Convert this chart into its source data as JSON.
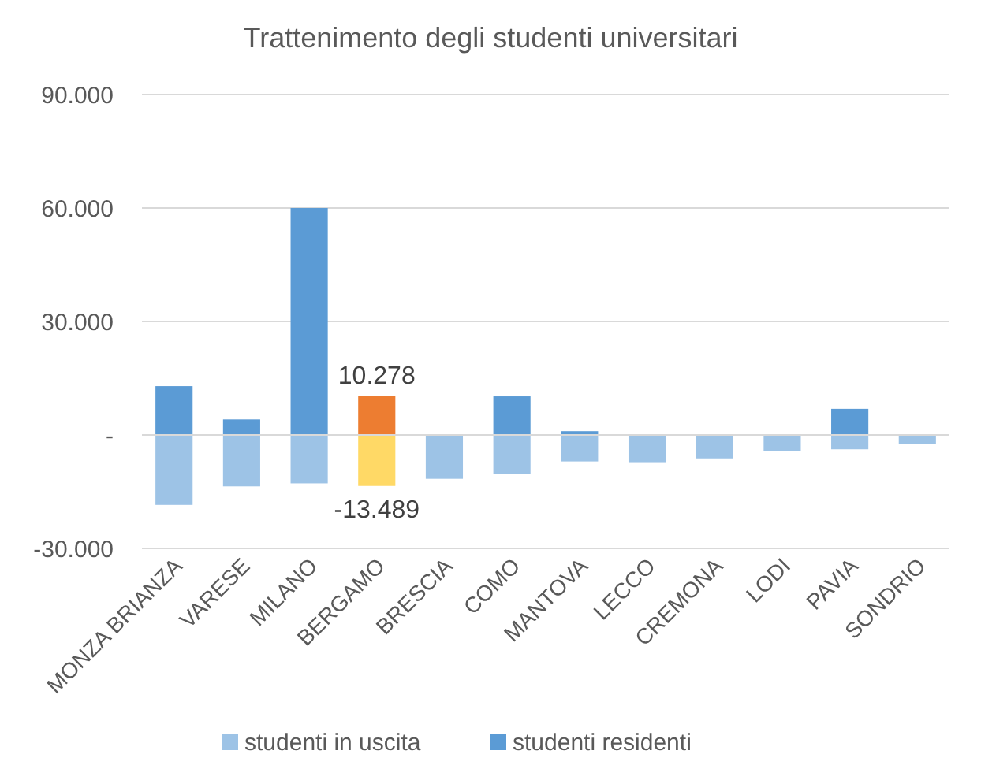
{
  "chart_data": {
    "type": "bar",
    "title": "Trattenimento degli studenti universitari",
    "categories": [
      "MONZA BRIANZA",
      "VARESE",
      "MILANO",
      "BERGAMO",
      "BRESCIA",
      "COMO",
      "MANTOVA",
      "LECCO",
      "CREMONA",
      "LODI",
      "PAVIA",
      "SONDRIO"
    ],
    "series": [
      {
        "name": "studenti in uscita",
        "color": "#9dc3e6",
        "colors": [
          "#9dc3e6",
          "#9dc3e6",
          "#9dc3e6",
          "#ffd966",
          "#9dc3e6",
          "#9dc3e6",
          "#9dc3e6",
          "#9dc3e6",
          "#9dc3e6",
          "#9dc3e6",
          "#9dc3e6",
          "#9dc3e6"
        ],
        "values": [
          -18500,
          -13600,
          -12800,
          -13489,
          -11600,
          -10300,
          -7000,
          -7200,
          -6200,
          -4300,
          -3800,
          -2500
        ],
        "value_labels": [
          null,
          null,
          null,
          "-13.489",
          null,
          null,
          null,
          null,
          null,
          null,
          null,
          null
        ]
      },
      {
        "name": "studenti residenti",
        "color": "#5b9bd5",
        "colors": [
          "#5b9bd5",
          "#5b9bd5",
          "#5b9bd5",
          "#ed7d31",
          "#5b9bd5",
          "#5b9bd5",
          "#5b9bd5",
          "#5b9bd5",
          "#5b9bd5",
          "#5b9bd5",
          "#5b9bd5",
          "#5b9bd5"
        ],
        "values": [
          12900,
          4100,
          60000,
          10278,
          0,
          10200,
          1000,
          0,
          0,
          0,
          6900,
          0
        ],
        "value_labels": [
          null,
          null,
          null,
          "10.278",
          null,
          null,
          null,
          null,
          null,
          null,
          null,
          null
        ]
      }
    ],
    "stacked": true,
    "ylim": [
      -30000,
      90000
    ],
    "yticks": [
      {
        "value": -30000,
        "label": "-30.000"
      },
      {
        "value": 0,
        "label": "-"
      },
      {
        "value": 30000,
        "label": "30.000"
      },
      {
        "value": 60000,
        "label": "60.000"
      },
      {
        "value": 90000,
        "label": "90.000"
      }
    ],
    "grid": "y",
    "legend": "bottom"
  }
}
